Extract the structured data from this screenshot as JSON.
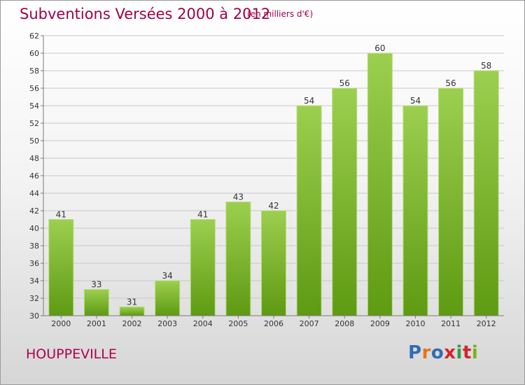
{
  "header": {
    "title": "Subventions Versées 2000 à 2012",
    "subtitle": "(en milliers d'€)"
  },
  "footer": {
    "town": "HOUPPEVILLE",
    "logo": {
      "text": "Proxiti",
      "colors": [
        "#2f6db5",
        "#e8731c",
        "#2f6db5",
        "#d6232c",
        "#2f9e44",
        "#d6232c",
        "#7ab317"
      ]
    }
  },
  "chart_data": {
    "type": "bar",
    "title": "Subventions Versées 2000 à 2012",
    "subtitle": "(en milliers d'€)",
    "categories": [
      "2000",
      "2001",
      "2002",
      "2003",
      "2004",
      "2005",
      "2006",
      "2007",
      "2008",
      "2009",
      "2010",
      "2011",
      "2012"
    ],
    "values": [
      41,
      33,
      31,
      34,
      41,
      43,
      42,
      54,
      56,
      60,
      54,
      56,
      58
    ],
    "ylim": [
      30,
      62
    ],
    "yticks": [
      30,
      32,
      34,
      36,
      38,
      40,
      42,
      44,
      46,
      48,
      50,
      52,
      54,
      56,
      58,
      60,
      62
    ],
    "grid": true,
    "xlabel": "",
    "ylabel": "",
    "colors": {
      "bar_top": "#9ccf4f",
      "bar_bottom": "#5e9a12",
      "grid": "#c8c8c8",
      "axis": "#7a7a7a"
    }
  }
}
